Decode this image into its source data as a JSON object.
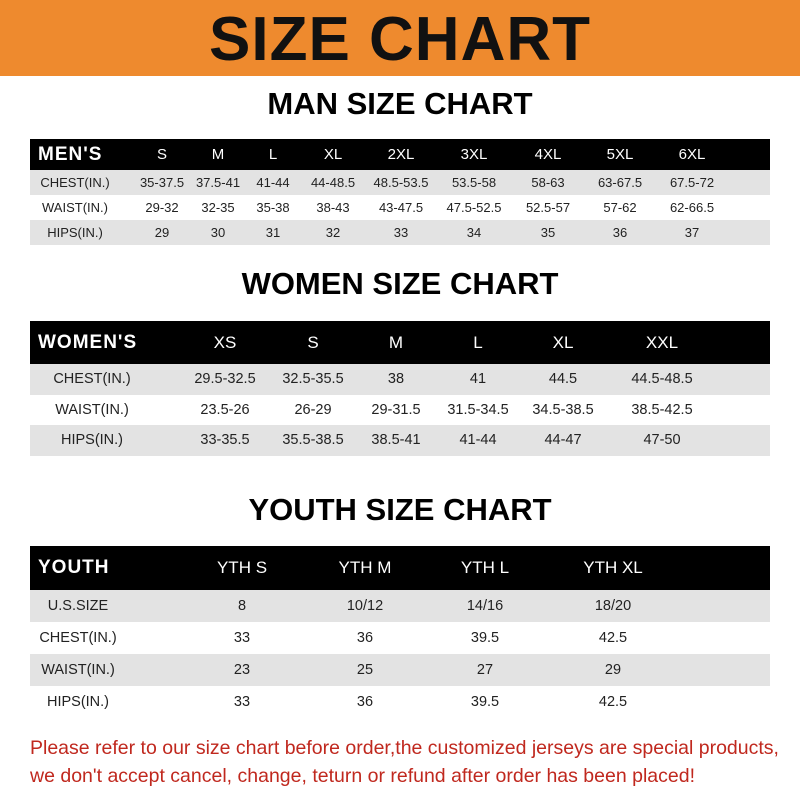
{
  "title": "SIZE CHART",
  "men": {
    "title": "MAN SIZE CHART",
    "header": [
      "MEN'S",
      "S",
      "M",
      "L",
      "XL",
      "2XL",
      "3XL",
      "4XL",
      "5XL",
      "6XL"
    ],
    "rows": [
      [
        "CHEST(IN.)",
        "35-37.5",
        "37.5-41",
        "41-44",
        "44-48.5",
        "48.5-53.5",
        "53.5-58",
        "58-63",
        "63-67.5",
        "67.5-72"
      ],
      [
        "WAIST(IN.)",
        "29-32",
        "32-35",
        "35-38",
        "38-43",
        "43-47.5",
        "47.5-52.5",
        "52.5-57",
        "57-62",
        "62-66.5"
      ],
      [
        "HIPS(IN.)",
        "29",
        "30",
        "31",
        "32",
        "33",
        "34",
        "35",
        "36",
        "37"
      ]
    ]
  },
  "women": {
    "title": "WOMEN SIZE CHART",
    "header": [
      "WOMEN'S",
      "XS",
      "S",
      "M",
      "L",
      "XL",
      "XXL"
    ],
    "rows": [
      [
        "CHEST(IN.)",
        "29.5-32.5",
        "32.5-35.5",
        "38",
        "41",
        "44.5",
        "44.5-48.5"
      ],
      [
        "WAIST(IN.)",
        "23.5-26",
        "26-29",
        "29-31.5",
        "31.5-34.5",
        "34.5-38.5",
        "38.5-42.5"
      ],
      [
        "HIPS(IN.)",
        "33-35.5",
        "35.5-38.5",
        "38.5-41",
        "41-44",
        "44-47",
        "47-50"
      ]
    ]
  },
  "youth": {
    "title": "YOUTH SIZE CHART",
    "header": [
      "YOUTH",
      "YTH S",
      "YTH M",
      "YTH L",
      "YTH XL"
    ],
    "rows": [
      [
        "U.S.SIZE",
        "8",
        "10/12",
        "14/16",
        "18/20"
      ],
      [
        "CHEST(IN.)",
        "33",
        "36",
        "39.5",
        "42.5"
      ],
      [
        "WAIST(IN.)",
        "23",
        "25",
        "27",
        "29"
      ],
      [
        "HIPS(IN.)",
        "33",
        "36",
        "39.5",
        "42.5"
      ]
    ]
  },
  "footer": {
    "line1": "Please refer to our size chart before order,the customized jerseys are special products,",
    "line2": "we don't accept cancel, change, teturn or refund after order has been placed!"
  },
  "colors": {
    "banner": "#ee8a2e",
    "header_bg": "#000000",
    "stripe": "#e3e3e3",
    "footer_text": "#c0281e"
  }
}
